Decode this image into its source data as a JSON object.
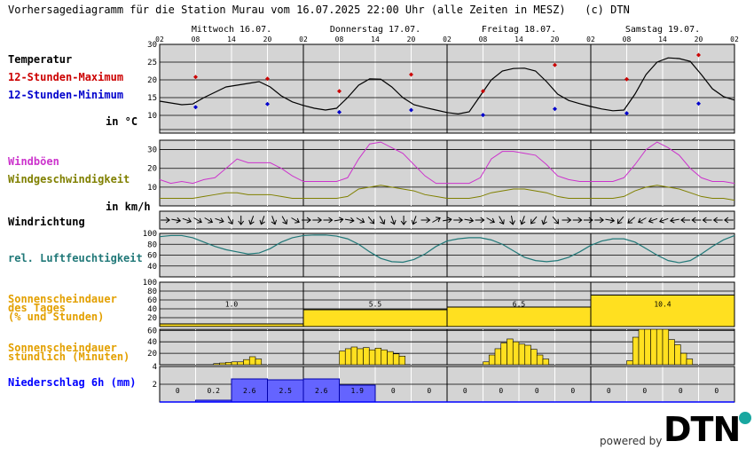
{
  "header": {
    "title": "Vorhersagediagramm für die Station Murau vom 16.07.2025 22:00 Uhr (alle Zeiten in MESZ)",
    "copyright": "(c) DTN"
  },
  "footer": {
    "powered_by": "powered by",
    "brand": "DTN"
  },
  "colors": {
    "max": "#cc0000",
    "min": "#0000cc",
    "gust": "#cc33cc",
    "wind": "#808000",
    "humid": "#207878",
    "sun": "#e3a000",
    "sunfill": "#ffe020",
    "precip": "#0000ff",
    "precipfill": "#6464ff"
  },
  "labels": {
    "temp": "Temperatur",
    "max": "12-Stunden-Maximum",
    "min": "12-Stunden-Minimum",
    "temp_unit": "in °C",
    "gust": "Windböen",
    "wind": "Windgeschwindigkeit",
    "wind_unit": "in km/h",
    "winddir": "Windrichtung",
    "humid": "rel. Luftfeuchtigkeit",
    "sundaily_1": "Sonnenscheindauer",
    "sundaily_2": "des Tages",
    "sundaily_3": "(% und Stunden)",
    "sunhourly_1": "Sonnenscheindauer",
    "sunhourly_2": "stündlich (Minuten)",
    "precip": "Niederschlag 6h (mm)"
  },
  "chart_data": {
    "type": "line",
    "days": [
      "Mittwoch 16.07.",
      "Donnerstag 17.07.",
      "Freitag 18.07.",
      "Samstag 19.07."
    ],
    "hour_ticks": [
      "02",
      "08",
      "14",
      "20"
    ],
    "last_tick": "02",
    "temperature": {
      "ylim": [
        5,
        30
      ],
      "yticks": [
        10,
        15,
        20,
        25,
        30
      ],
      "series": [
        14,
        13.5,
        13,
        13.2,
        15,
        16.5,
        18,
        18.5,
        19,
        19.5,
        18,
        15.5,
        13.8,
        12.8,
        12,
        11.5,
        12,
        15,
        18.5,
        20.3,
        20.2,
        18,
        15,
        13,
        12.2,
        11.5,
        10.8,
        10.4,
        11,
        15.5,
        20,
        22.5,
        23.2,
        23.3,
        22.5,
        19.5,
        16,
        14.2,
        13.3,
        12.5,
        11.8,
        11.3,
        11.5,
        16,
        21.5,
        25,
        26.2,
        26,
        25.2,
        21.5,
        17.5,
        15.3,
        14.3
      ],
      "max_markers": [
        20.8,
        20.3,
        16.8,
        21.5,
        16.8,
        24.2,
        20.2,
        27
      ],
      "min_markers": [
        12.3,
        13.2,
        10.9,
        11.5,
        10.1,
        11.8,
        10.6,
        13.3
      ]
    },
    "gusts": {
      "ylim": [
        0,
        35
      ],
      "yticks": [
        10,
        20,
        30
      ],
      "series": [
        14,
        12,
        13,
        12,
        14,
        15,
        20,
        25,
        23,
        23,
        23,
        20,
        16,
        13,
        13,
        13,
        13,
        15,
        25,
        33,
        34,
        31,
        28,
        22,
        16,
        12,
        12,
        12,
        12,
        15,
        25,
        29,
        29,
        28,
        27,
        22,
        16,
        14,
        13,
        13,
        13,
        13,
        15,
        22,
        30,
        34,
        31,
        27,
        20,
        15,
        13,
        13,
        12
      ]
    },
    "wind": {
      "series": [
        4,
        4,
        4,
        4,
        5,
        6,
        7,
        7,
        6,
        6,
        6,
        5,
        4,
        4,
        4,
        4,
        4,
        5,
        9,
        10,
        11,
        10,
        9,
        8,
        6,
        5,
        4,
        4,
        4,
        5,
        7,
        8,
        9,
        9,
        8,
        7,
        5,
        4,
        4,
        4,
        4,
        4,
        5,
        8,
        10,
        11,
        10,
        9,
        7,
        5,
        4,
        4,
        3
      ]
    },
    "wind_direction_deg": [
      90,
      100,
      110,
      120,
      120,
      110,
      150,
      180,
      200,
      200,
      160,
      150,
      120,
      90,
      90,
      90,
      80,
      100,
      120,
      140,
      150,
      160,
      180,
      200,
      90,
      60,
      80,
      90,
      100,
      90,
      120,
      150,
      170,
      200,
      220,
      200,
      140,
      90,
      90,
      90,
      90,
      100,
      220,
      230,
      240,
      250,
      250,
      260,
      270,
      270,
      270,
      270,
      270
    ],
    "humidity": {
      "ylim": [
        20,
        100
      ],
      "yticks": [
        40,
        60,
        80,
        100
      ],
      "series": [
        94,
        96,
        96,
        92,
        84,
        76,
        70,
        66,
        62,
        64,
        72,
        84,
        92,
        96,
        97,
        97,
        95,
        90,
        80,
        66,
        54,
        48,
        47,
        52,
        62,
        76,
        86,
        90,
        92,
        92,
        88,
        80,
        68,
        56,
        50,
        48,
        50,
        56,
        66,
        78,
        86,
        90,
        90,
        84,
        72,
        60,
        50,
        46,
        50,
        62,
        76,
        88,
        96
      ]
    },
    "sun_daily": {
      "yticks": [
        20,
        40,
        60,
        80,
        100
      ],
      "percent": [
        6,
        38,
        44,
        71
      ],
      "hours": [
        "1.0",
        "5.5",
        "6.5",
        "10.4"
      ]
    },
    "sun_hourly": {
      "yticks": [
        20,
        40,
        60
      ],
      "minutes": [
        0,
        0,
        0,
        0,
        0,
        0,
        0,
        0,
        0,
        0,
        0,
        0,
        0,
        2,
        3,
        4,
        5,
        5,
        9,
        14,
        10,
        0,
        0,
        0,
        0,
        0,
        0,
        0,
        0,
        0,
        0,
        0,
        0,
        0,
        0,
        0,
        0,
        0,
        0,
        0,
        0,
        0,
        0,
        0,
        0,
        0,
        0,
        0,
        0,
        0,
        0,
        0,
        0,
        0,
        0,
        24,
        28,
        31,
        28,
        30,
        26,
        29,
        26,
        23,
        19,
        15,
        0,
        0,
        0,
        0,
        0,
        0,
        0,
        0,
        0,
        0,
        0,
        0,
        0,
        0,
        0,
        0,
        0,
        0,
        0,
        0,
        0,
        0,
        0,
        0,
        0,
        0,
        0,
        0,
        0,
        0,
        0,
        0,
        0,
        0,
        0,
        0,
        0,
        0,
        0,
        0,
        0,
        0,
        0,
        0,
        0,
        0,
        0,
        0,
        0,
        0,
        0,
        0,
        0,
        0,
        0,
        0,
        0,
        0,
        0,
        0,
        0,
        0,
        0,
        0,
        0,
        0,
        0,
        0,
        0,
        0,
        0,
        0,
        0,
        0,
        0,
        0,
        0,
        0,
        0,
        0,
        0,
        0,
        0,
        0,
        0,
        0,
        0,
        0,
        0,
        0,
        0,
        0,
        0,
        0,
        0,
        0,
        0,
        0,
        0,
        0,
        0,
        0,
        0,
        0,
        0,
        0,
        0,
        0,
        0,
        0,
        0,
        0,
        0,
        0,
        0,
        0,
        0,
        0,
        0,
        0,
        0,
        0,
        0,
        0,
        0,
        0,
        0,
        0,
        0,
        0,
        0,
        0,
        0,
        0,
        0,
        0,
        0,
        0,
        0,
        0,
        0,
        0,
        0,
        0,
        0,
        0,
        0,
        0,
        0,
        0,
        0,
        0,
        0,
        0,
        0,
        0,
        0,
        0,
        0,
        0,
        0,
        0,
        0,
        0,
        0,
        0,
        0,
        0,
        0,
        0,
        0,
        0,
        0,
        0,
        0,
        0,
        0,
        0,
        0,
        0,
        0,
        0,
        0,
        0,
        0,
        0,
        0,
        0,
        0,
        0,
        0,
        0,
        0,
        0,
        0,
        0,
        0,
        0,
        0,
        0,
        0,
        0,
        0,
        0,
        0,
        0,
        0,
        0,
        0,
        0
      ],
      "day_bars": [
        [
          0,
          0,
          0,
          2,
          3,
          4,
          5,
          5,
          9,
          14,
          10
        ],
        [
          24,
          28,
          31,
          28,
          30,
          26,
          29,
          26,
          23,
          19,
          15
        ],
        [
          5,
          17,
          28,
          38,
          45,
          40,
          36,
          34,
          27,
          17,
          10
        ],
        [
          7,
          48,
          62,
          62,
          62,
          62,
          62,
          44,
          35,
          20,
          10
        ]
      ],
      "ylim": [
        0,
        62
      ]
    },
    "precip_6h": {
      "ylim": [
        0,
        4
      ],
      "yticks": [
        2,
        4
      ],
      "values": [
        0,
        0.2,
        2.6,
        2.5,
        2.6,
        1.9,
        0,
        0,
        0,
        0,
        0,
        0,
        0,
        0,
        0,
        0
      ],
      "labels": [
        "0",
        "0.2",
        "2.6",
        "2.5",
        "2.6",
        "1.9",
        "0",
        "0",
        "0",
        "0",
        "0",
        "0",
        "0",
        "0",
        "0",
        "0"
      ]
    }
  }
}
